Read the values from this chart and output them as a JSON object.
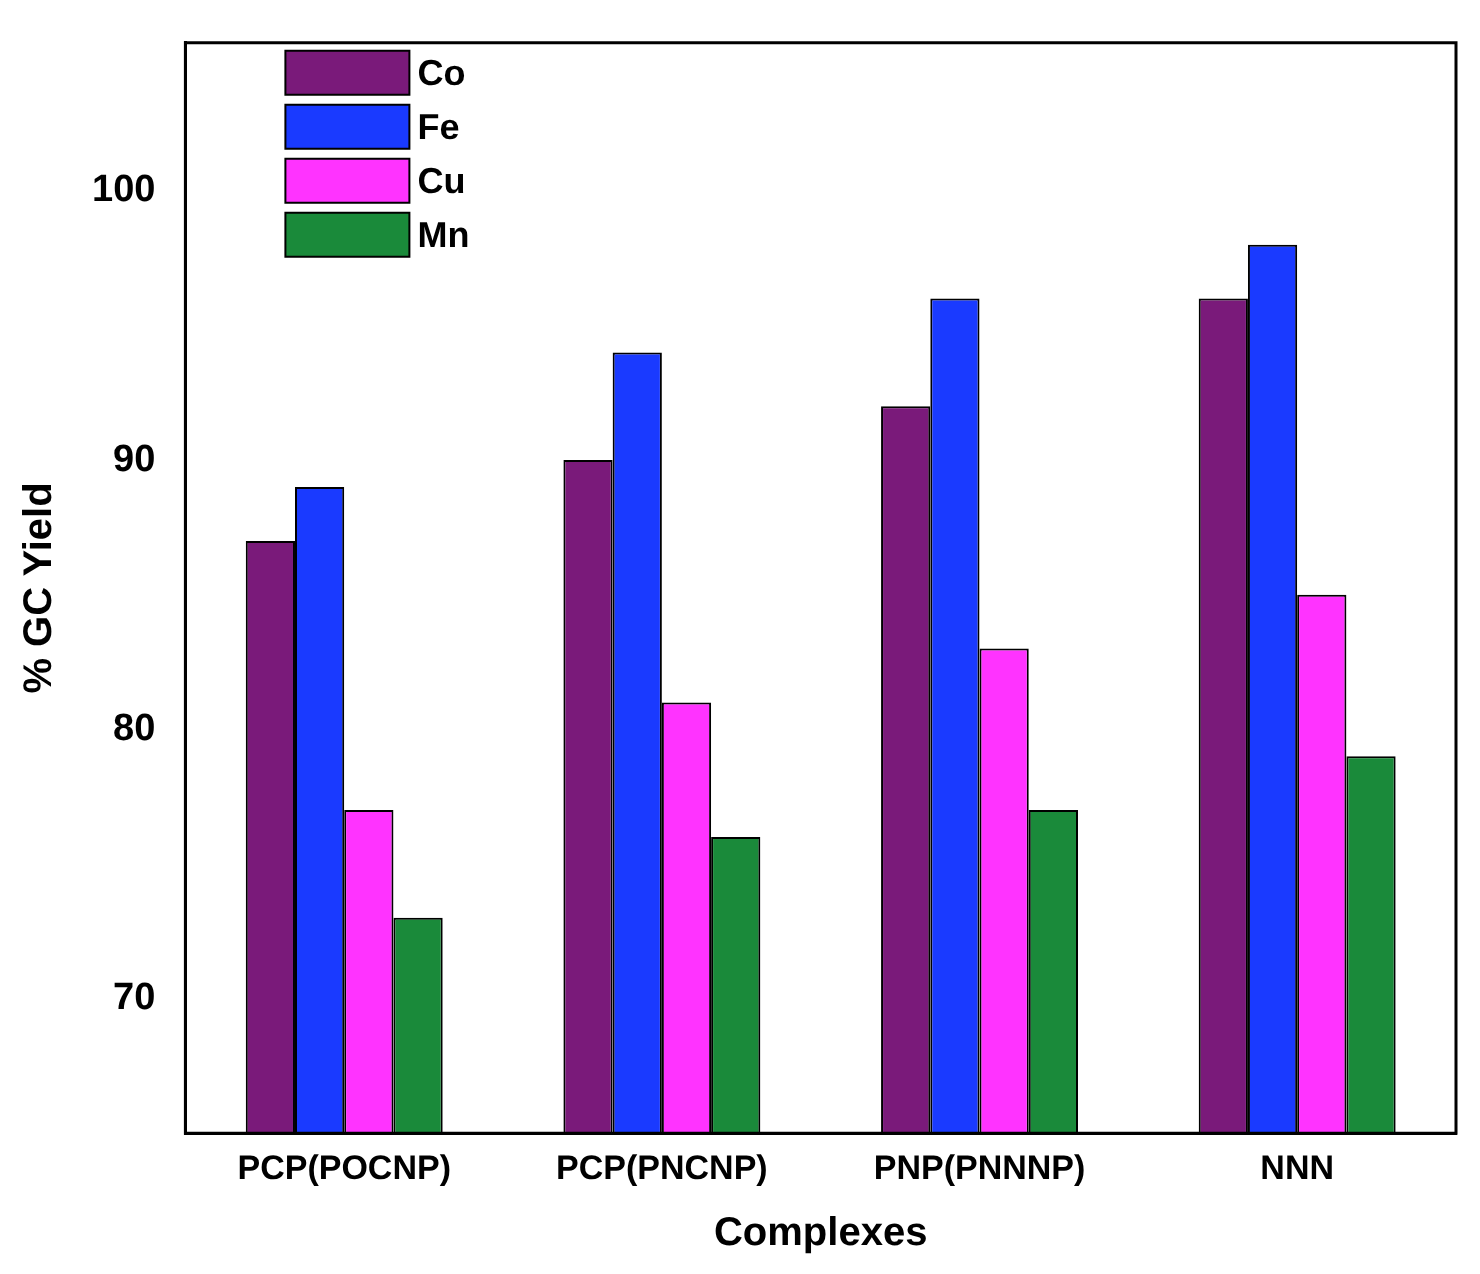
{
  "chart_data": {
    "type": "bar",
    "xlabel": "Complexes",
    "ylabel": "% GC Yield",
    "categories": [
      "PCP(POCNP)",
      "PCP(PNCNP)",
      "PNP(PNNNP)",
      "NNN"
    ],
    "series": [
      {
        "name": "Co",
        "color": "#7a1a7a",
        "values": [
          87,
          90,
          92,
          96
        ]
      },
      {
        "name": "Fe",
        "color": "#1a3aff",
        "values": [
          89,
          94,
          96,
          98
        ]
      },
      {
        "name": "Cu",
        "color": "#ff33ff",
        "values": [
          77,
          81,
          83,
          85
        ]
      },
      {
        "name": "Mn",
        "color": "#1a8a3a",
        "values": [
          73,
          76,
          77,
          79
        ]
      }
    ],
    "ylim": [
      65,
      105.5
    ],
    "yticks": [
      70,
      80,
      90,
      100
    ],
    "grid": false,
    "legend": "top left"
  }
}
